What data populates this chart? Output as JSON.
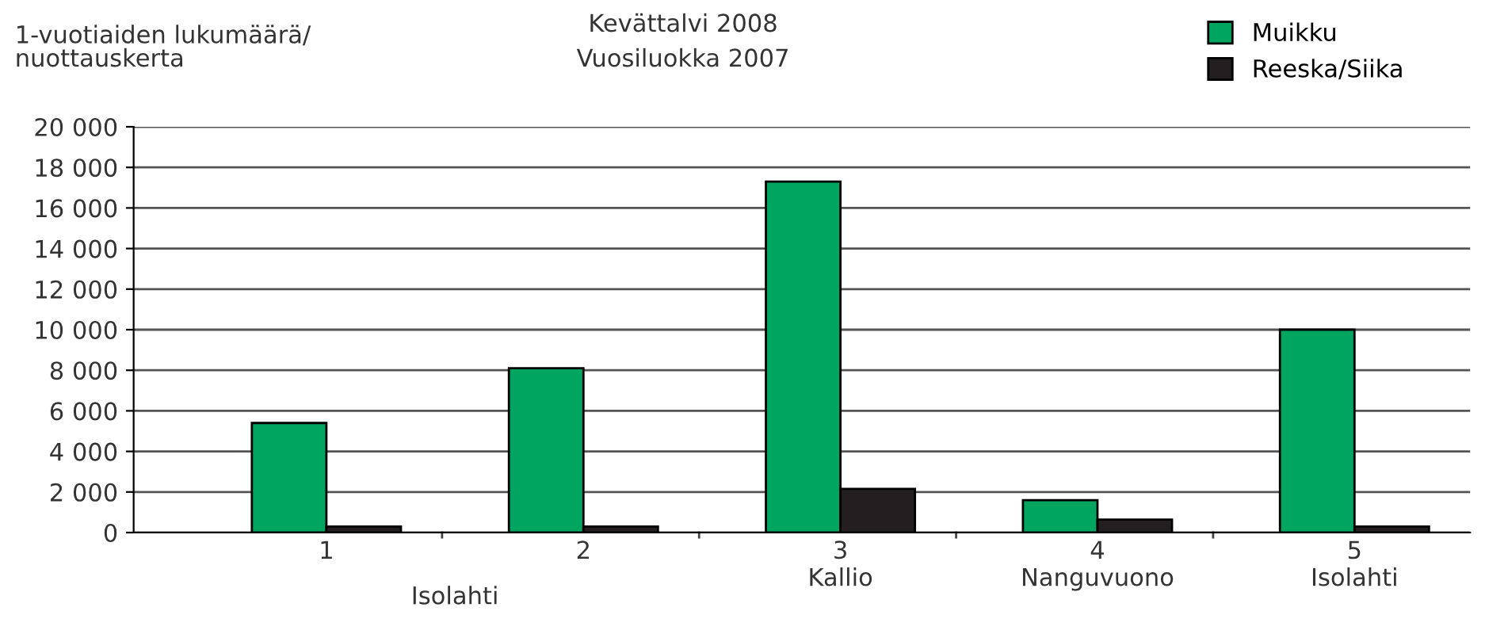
{
  "chart_data": {
    "type": "bar",
    "title": "Kevättalvi 2008",
    "subtitle": "Vuosiluokka 2007",
    "ylabel": "1-vuotiaiden lukumäärä/\nnuottauskerta",
    "categories": [
      "1",
      "2",
      "3\nKallio",
      "4\nNanguvuono",
      "5\nIsolahti"
    ],
    "annotations": [
      "Isolahti"
    ],
    "series": [
      {
        "name": "Muikku",
        "color": "#00a660",
        "values": [
          5400,
          8100,
          17300,
          1600,
          10000
        ]
      },
      {
        "name": "Reeska/Siika",
        "color": "#231f20",
        "values": [
          300,
          300,
          2150,
          640,
          300
        ]
      }
    ],
    "ylim": [
      0,
      20000
    ],
    "yticks": [
      {
        "value": 0,
        "label": "0"
      },
      {
        "value": 2000,
        "label": "2 000"
      },
      {
        "value": 4000,
        "label": "4 000"
      },
      {
        "value": 6000,
        "label": "6 000"
      },
      {
        "value": 8000,
        "label": "8 000"
      },
      {
        "value": 10000,
        "label": "10 000"
      },
      {
        "value": 12000,
        "label": "12 000"
      },
      {
        "value": 14000,
        "label": "14 000"
      },
      {
        "value": 16000,
        "label": "16 000"
      },
      {
        "value": 18000,
        "label": "18 000"
      },
      {
        "value": 20000,
        "label": "20 000"
      }
    ],
    "grid": "y",
    "legend": "top right"
  }
}
